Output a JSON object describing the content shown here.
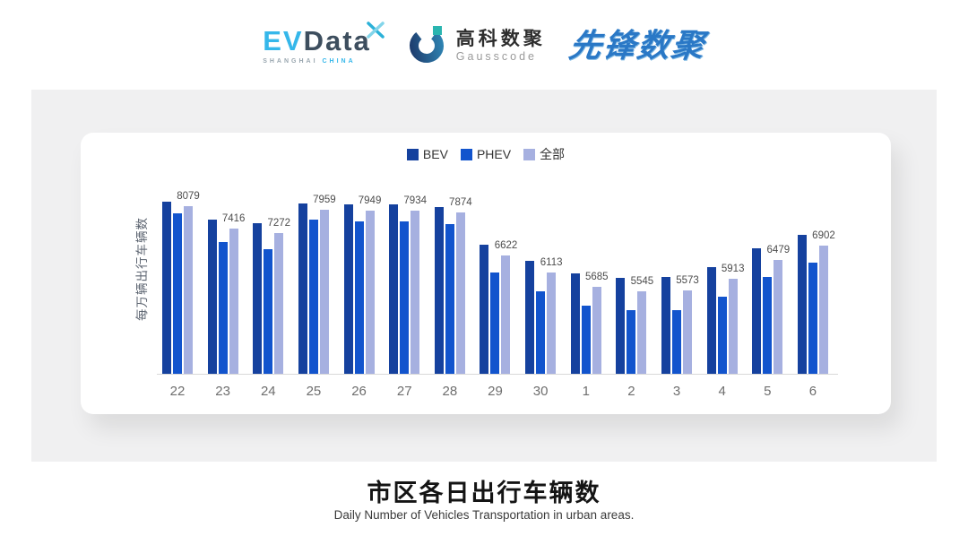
{
  "header": {
    "evdata": {
      "ev": "EV",
      "data": "Data",
      "sub_left": "SHANGHAI",
      "sub_right": "CHINA"
    },
    "gausscode": {
      "cn": "高科数聚",
      "en": "Gausscode"
    },
    "pioneer": {
      "text": "先锋数聚"
    }
  },
  "chart_data": {
    "type": "bar",
    "title": "市区各日出行车辆数",
    "subtitle": "Daily Number of Vehicles Transportation in urban areas.",
    "ylabel": "每万辆出行车辆数",
    "categories": [
      "22",
      "23",
      "24",
      "25",
      "26",
      "27",
      "28",
      "29",
      "30",
      "1",
      "2",
      "3",
      "4",
      "5",
      "6"
    ],
    "series": [
      {
        "name": "BEV",
        "color": "#15419e",
        "values": [
          8210,
          7670,
          7570,
          8140,
          8120,
          8130,
          8040,
          6930,
          6460,
          6080,
          5950,
          5980,
          6270,
          6820,
          7210
        ]
      },
      {
        "name": "PHEV",
        "color": "#1254cd",
        "values": [
          7850,
          7020,
          6800,
          7660,
          7630,
          7610,
          7550,
          6110,
          5550,
          5110,
          4980,
          4980,
          5400,
          5960,
          6400
        ]
      },
      {
        "name": "全部",
        "color": "#a6b0e0",
        "values": [
          8079,
          7416,
          7272,
          7959,
          7949,
          7934,
          7874,
          6622,
          6113,
          5685,
          5545,
          5573,
          5913,
          6479,
          6902
        ]
      }
    ],
    "data_labels": [
      "8079",
      "7416",
      "7272",
      "7959",
      "7949",
      "7934",
      "7874",
      "6622",
      "6113",
      "5685",
      "5545",
      "5573",
      "5913",
      "6479",
      "6902"
    ],
    "ylim": [
      3100,
      9000
    ],
    "legend_position": "top",
    "grid": false,
    "colors": {
      "axis_line": "#d9d9d9",
      "panel_bg": "#f0f0f1",
      "card_bg": "#ffffff"
    }
  }
}
